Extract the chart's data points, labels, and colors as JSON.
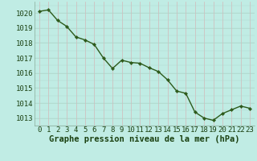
{
  "x": [
    0,
    1,
    2,
    3,
    4,
    5,
    6,
    7,
    8,
    9,
    10,
    11,
    12,
    13,
    14,
    15,
    16,
    17,
    18,
    19,
    20,
    21,
    22,
    23
  ],
  "y": [
    1020.1,
    1020.2,
    1019.5,
    1019.1,
    1018.4,
    1018.2,
    1017.9,
    1017.0,
    1016.3,
    1016.85,
    1016.7,
    1016.65,
    1016.35,
    1016.1,
    1015.55,
    1014.8,
    1014.65,
    1013.4,
    1013.0,
    1012.85,
    1013.3,
    1013.55,
    1013.8,
    1013.65
  ],
  "line_color": "#2d5a1b",
  "marker_color": "#2d5a1b",
  "bg_color": "#c0ece4",
  "grid_major_color": "#b0d8cc",
  "grid_minor_color": "#cceeea",
  "xlabel": "Graphe pression niveau de la mer (hPa)",
  "xlabel_color": "#1a4010",
  "tick_color": "#1a4010",
  "ylim": [
    1012.5,
    1020.75
  ],
  "yticks": [
    1013,
    1014,
    1015,
    1016,
    1017,
    1018,
    1019,
    1020
  ],
  "xticks": [
    0,
    1,
    2,
    3,
    4,
    5,
    6,
    7,
    8,
    9,
    10,
    11,
    12,
    13,
    14,
    15,
    16,
    17,
    18,
    19,
    20,
    21,
    22,
    23
  ],
  "tick_fontsize": 6.5,
  "xlabel_fontsize": 7.5,
  "linewidth": 1.0,
  "markersize": 2.2
}
